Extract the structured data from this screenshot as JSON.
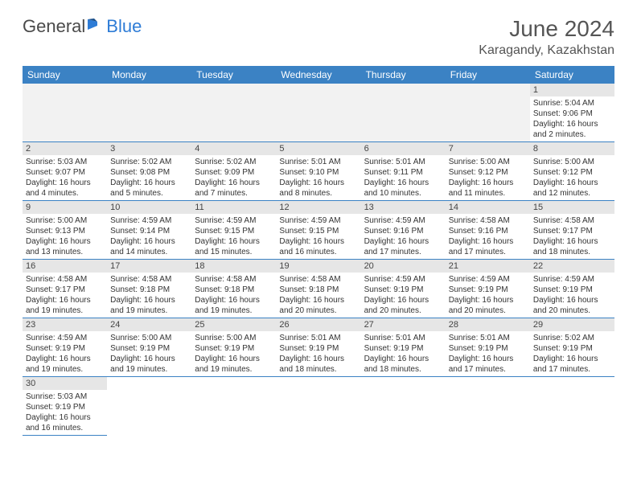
{
  "header": {
    "logo_general": "General",
    "logo_blue": "Blue",
    "month_title": "June 2024",
    "location": "Karagandy, Kazakhstan"
  },
  "styling": {
    "header_bg": "#3b82c4",
    "header_text": "#ffffff",
    "daynum_bg": "#e6e6e6",
    "empty_bg": "#f2f2f2",
    "border_color": "#3b82c4",
    "font_family": "Arial",
    "title_fontsize": 28,
    "location_fontsize": 16,
    "th_fontsize": 12,
    "daynum_fontsize": 11,
    "body_fontsize": 10
  },
  "daynames": [
    "Sunday",
    "Monday",
    "Tuesday",
    "Wednesday",
    "Thursday",
    "Friday",
    "Saturday"
  ],
  "days": {
    "1": {
      "sunrise": "Sunrise: 5:04 AM",
      "sunset": "Sunset: 9:06 PM",
      "daylight": "Daylight: 16 hours and 2 minutes."
    },
    "2": {
      "sunrise": "Sunrise: 5:03 AM",
      "sunset": "Sunset: 9:07 PM",
      "daylight": "Daylight: 16 hours and 4 minutes."
    },
    "3": {
      "sunrise": "Sunrise: 5:02 AM",
      "sunset": "Sunset: 9:08 PM",
      "daylight": "Daylight: 16 hours and 5 minutes."
    },
    "4": {
      "sunrise": "Sunrise: 5:02 AM",
      "sunset": "Sunset: 9:09 PM",
      "daylight": "Daylight: 16 hours and 7 minutes."
    },
    "5": {
      "sunrise": "Sunrise: 5:01 AM",
      "sunset": "Sunset: 9:10 PM",
      "daylight": "Daylight: 16 hours and 8 minutes."
    },
    "6": {
      "sunrise": "Sunrise: 5:01 AM",
      "sunset": "Sunset: 9:11 PM",
      "daylight": "Daylight: 16 hours and 10 minutes."
    },
    "7": {
      "sunrise": "Sunrise: 5:00 AM",
      "sunset": "Sunset: 9:12 PM",
      "daylight": "Daylight: 16 hours and 11 minutes."
    },
    "8": {
      "sunrise": "Sunrise: 5:00 AM",
      "sunset": "Sunset: 9:12 PM",
      "daylight": "Daylight: 16 hours and 12 minutes."
    },
    "9": {
      "sunrise": "Sunrise: 5:00 AM",
      "sunset": "Sunset: 9:13 PM",
      "daylight": "Daylight: 16 hours and 13 minutes."
    },
    "10": {
      "sunrise": "Sunrise: 4:59 AM",
      "sunset": "Sunset: 9:14 PM",
      "daylight": "Daylight: 16 hours and 14 minutes."
    },
    "11": {
      "sunrise": "Sunrise: 4:59 AM",
      "sunset": "Sunset: 9:15 PM",
      "daylight": "Daylight: 16 hours and 15 minutes."
    },
    "12": {
      "sunrise": "Sunrise: 4:59 AM",
      "sunset": "Sunset: 9:15 PM",
      "daylight": "Daylight: 16 hours and 16 minutes."
    },
    "13": {
      "sunrise": "Sunrise: 4:59 AM",
      "sunset": "Sunset: 9:16 PM",
      "daylight": "Daylight: 16 hours and 17 minutes."
    },
    "14": {
      "sunrise": "Sunrise: 4:58 AM",
      "sunset": "Sunset: 9:16 PM",
      "daylight": "Daylight: 16 hours and 17 minutes."
    },
    "15": {
      "sunrise": "Sunrise: 4:58 AM",
      "sunset": "Sunset: 9:17 PM",
      "daylight": "Daylight: 16 hours and 18 minutes."
    },
    "16": {
      "sunrise": "Sunrise: 4:58 AM",
      "sunset": "Sunset: 9:17 PM",
      "daylight": "Daylight: 16 hours and 19 minutes."
    },
    "17": {
      "sunrise": "Sunrise: 4:58 AM",
      "sunset": "Sunset: 9:18 PM",
      "daylight": "Daylight: 16 hours and 19 minutes."
    },
    "18": {
      "sunrise": "Sunrise: 4:58 AM",
      "sunset": "Sunset: 9:18 PM",
      "daylight": "Daylight: 16 hours and 19 minutes."
    },
    "19": {
      "sunrise": "Sunrise: 4:58 AM",
      "sunset": "Sunset: 9:18 PM",
      "daylight": "Daylight: 16 hours and 20 minutes."
    },
    "20": {
      "sunrise": "Sunrise: 4:59 AM",
      "sunset": "Sunset: 9:19 PM",
      "daylight": "Daylight: 16 hours and 20 minutes."
    },
    "21": {
      "sunrise": "Sunrise: 4:59 AM",
      "sunset": "Sunset: 9:19 PM",
      "daylight": "Daylight: 16 hours and 20 minutes."
    },
    "22": {
      "sunrise": "Sunrise: 4:59 AM",
      "sunset": "Sunset: 9:19 PM",
      "daylight": "Daylight: 16 hours and 20 minutes."
    },
    "23": {
      "sunrise": "Sunrise: 4:59 AM",
      "sunset": "Sunset: 9:19 PM",
      "daylight": "Daylight: 16 hours and 19 minutes."
    },
    "24": {
      "sunrise": "Sunrise: 5:00 AM",
      "sunset": "Sunset: 9:19 PM",
      "daylight": "Daylight: 16 hours and 19 minutes."
    },
    "25": {
      "sunrise": "Sunrise: 5:00 AM",
      "sunset": "Sunset: 9:19 PM",
      "daylight": "Daylight: 16 hours and 19 minutes."
    },
    "26": {
      "sunrise": "Sunrise: 5:01 AM",
      "sunset": "Sunset: 9:19 PM",
      "daylight": "Daylight: 16 hours and 18 minutes."
    },
    "27": {
      "sunrise": "Sunrise: 5:01 AM",
      "sunset": "Sunset: 9:19 PM",
      "daylight": "Daylight: 16 hours and 18 minutes."
    },
    "28": {
      "sunrise": "Sunrise: 5:01 AM",
      "sunset": "Sunset: 9:19 PM",
      "daylight": "Daylight: 16 hours and 17 minutes."
    },
    "29": {
      "sunrise": "Sunrise: 5:02 AM",
      "sunset": "Sunset: 9:19 PM",
      "daylight": "Daylight: 16 hours and 17 minutes."
    },
    "30": {
      "sunrise": "Sunrise: 5:03 AM",
      "sunset": "Sunset: 9:19 PM",
      "daylight": "Daylight: 16 hours and 16 minutes."
    }
  },
  "layout": {
    "first_weekday": 6,
    "num_days": 30,
    "cols": 7
  }
}
